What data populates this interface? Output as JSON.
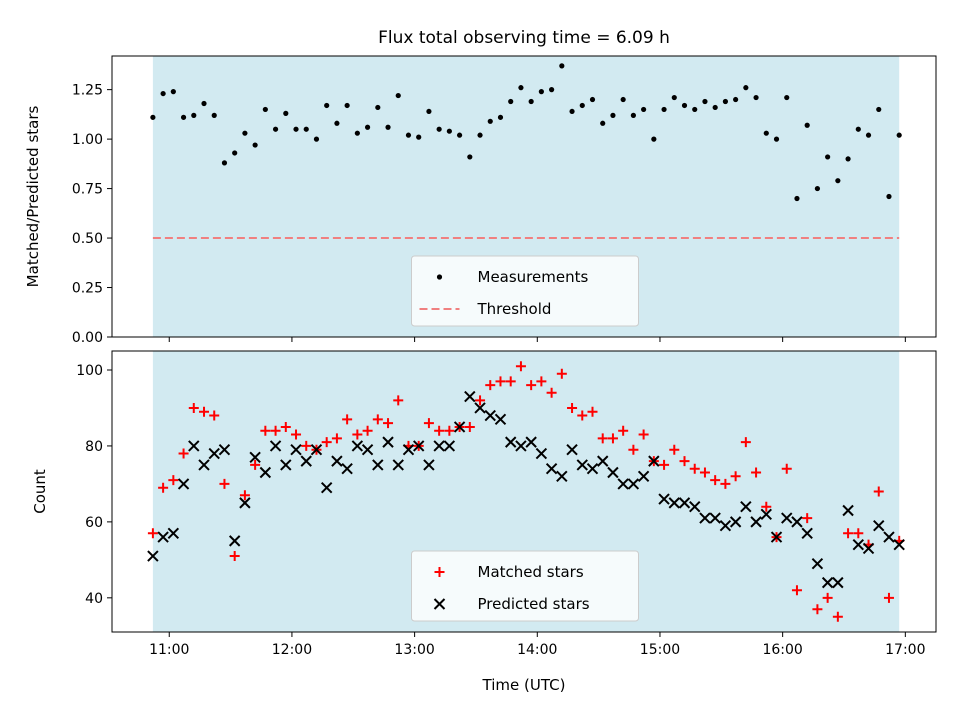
{
  "chart_data": [
    {
      "type": "scatter",
      "title": "Flux total observing time = 6.09 h",
      "xlabel": "",
      "ylabel": "Matched/Predicted stars",
      "xlim": [
        "10:32",
        "17:15"
      ],
      "ylim": [
        0,
        1.42
      ],
      "yticks": [
        "0.00",
        "0.25",
        "0.50",
        "0.75",
        "1.00",
        "1.25"
      ],
      "ytick_values": [
        0,
        0.25,
        0.5,
        0.75,
        1.0,
        1.25
      ],
      "shaded_span": [
        "10:52",
        "16:57"
      ],
      "threshold": 0.5,
      "legend": {
        "placement": "lower-center",
        "entries": [
          "Measurements",
          "Threshold"
        ]
      },
      "series": [
        {
          "name": "Measurements",
          "marker": "dot",
          "color": "#000000",
          "x": [
            "10:52",
            "10:57",
            "11:02",
            "11:07",
            "11:12",
            "11:17",
            "11:22",
            "11:27",
            "11:32",
            "11:37",
            "11:42",
            "11:47",
            "11:52",
            "11:57",
            "12:02",
            "12:07",
            "12:12",
            "12:17",
            "12:22",
            "12:27",
            "12:32",
            "12:37",
            "12:42",
            "12:47",
            "12:52",
            "12:57",
            "13:02",
            "13:07",
            "13:12",
            "13:17",
            "13:22",
            "13:27",
            "13:32",
            "13:37",
            "13:42",
            "13:47",
            "13:52",
            "13:57",
            "14:02",
            "14:07",
            "14:12",
            "14:17",
            "14:22",
            "14:27",
            "14:32",
            "14:37",
            "14:42",
            "14:47",
            "14:52",
            "14:57",
            "15:02",
            "15:07",
            "15:12",
            "15:17",
            "15:22",
            "15:27",
            "15:32",
            "15:37",
            "15:42",
            "15:47",
            "15:52",
            "15:57",
            "16:02",
            "16:07",
            "16:12",
            "16:17",
            "16:22",
            "16:27",
            "16:32",
            "16:37",
            "16:42",
            "16:47",
            "16:52",
            "16:57"
          ],
          "y": [
            1.11,
            1.23,
            1.24,
            1.11,
            1.12,
            1.18,
            1.12,
            0.88,
            0.93,
            1.03,
            0.97,
            1.15,
            1.05,
            1.13,
            1.05,
            1.05,
            1.0,
            1.17,
            1.08,
            1.17,
            1.03,
            1.06,
            1.16,
            1.06,
            1.22,
            1.02,
            1.01,
            1.14,
            1.05,
            1.04,
            1.02,
            0.91,
            1.02,
            1.09,
            1.11,
            1.19,
            1.26,
            1.19,
            1.24,
            1.25,
            1.37,
            1.14,
            1.17,
            1.2,
            1.08,
            1.12,
            1.2,
            1.12,
            1.15,
            1.0,
            1.15,
            1.21,
            1.17,
            1.15,
            1.19,
            1.16,
            1.19,
            1.2,
            1.26,
            1.21,
            1.03,
            1.0,
            1.21,
            0.7,
            1.07,
            0.75,
            0.91,
            0.79,
            0.9,
            1.05,
            1.02,
            1.15,
            0.71,
            1.02
          ]
        },
        {
          "name": "Threshold",
          "style": "dashed",
          "color": "#f08080",
          "x": [
            "10:52",
            "16:57"
          ],
          "y": [
            0.5,
            0.5
          ]
        }
      ]
    },
    {
      "type": "scatter",
      "title": "",
      "xlabel": "Time (UTC)",
      "ylabel": "Count",
      "xlim": [
        "10:32",
        "17:15"
      ],
      "ylim": [
        31,
        105
      ],
      "yticks": [
        "40",
        "60",
        "80",
        "100"
      ],
      "ytick_values": [
        40,
        60,
        80,
        100
      ],
      "xticks": [
        "11:00",
        "12:00",
        "13:00",
        "14:00",
        "15:00",
        "16:00",
        "17:00"
      ],
      "shaded_span": [
        "10:52",
        "16:57"
      ],
      "legend": {
        "placement": "lower-center",
        "entries": [
          "Matched stars",
          "Predicted stars"
        ]
      },
      "series": [
        {
          "name": "Matched stars",
          "marker": "plus",
          "color": "#ff0000",
          "x": [
            "10:52",
            "10:57",
            "11:02",
            "11:07",
            "11:12",
            "11:17",
            "11:22",
            "11:27",
            "11:32",
            "11:37",
            "11:42",
            "11:47",
            "11:52",
            "11:57",
            "12:02",
            "12:07",
            "12:12",
            "12:17",
            "12:22",
            "12:27",
            "12:32",
            "12:37",
            "12:42",
            "12:47",
            "12:52",
            "12:57",
            "13:02",
            "13:07",
            "13:12",
            "13:17",
            "13:22",
            "13:27",
            "13:32",
            "13:37",
            "13:42",
            "13:47",
            "13:52",
            "13:57",
            "14:02",
            "14:07",
            "14:12",
            "14:17",
            "14:22",
            "14:27",
            "14:32",
            "14:37",
            "14:42",
            "14:47",
            "14:52",
            "14:57",
            "15:02",
            "15:07",
            "15:12",
            "15:17",
            "15:22",
            "15:27",
            "15:32",
            "15:37",
            "15:42",
            "15:47",
            "15:52",
            "15:57",
            "16:02",
            "16:07",
            "16:12",
            "16:17",
            "16:22",
            "16:27",
            "16:32",
            "16:37",
            "16:42",
            "16:47",
            "16:52",
            "16:57"
          ],
          "y": [
            57,
            69,
            71,
            78,
            90,
            89,
            88,
            70,
            51,
            67,
            75,
            84,
            84,
            85,
            83,
            80,
            79,
            81,
            82,
            87,
            83,
            84,
            87,
            86,
            92,
            80,
            80,
            86,
            84,
            84,
            85,
            85,
            92,
            96,
            97,
            97,
            101,
            96,
            97,
            94,
            99,
            90,
            88,
            89,
            82,
            82,
            84,
            79,
            83,
            76,
            75,
            79,
            76,
            74,
            73,
            71,
            70,
            72,
            81,
            73,
            64,
            56,
            74,
            42,
            61,
            37,
            40,
            35,
            57,
            57,
            54,
            68,
            40,
            55
          ]
        },
        {
          "name": "Predicted stars",
          "marker": "x",
          "color": "#000000",
          "x": [
            "10:52",
            "10:57",
            "11:02",
            "11:07",
            "11:12",
            "11:17",
            "11:22",
            "11:27",
            "11:32",
            "11:37",
            "11:42",
            "11:47",
            "11:52",
            "11:57",
            "12:02",
            "12:07",
            "12:12",
            "12:17",
            "12:22",
            "12:27",
            "12:32",
            "12:37",
            "12:42",
            "12:47",
            "12:52",
            "12:57",
            "13:02",
            "13:07",
            "13:12",
            "13:17",
            "13:22",
            "13:27",
            "13:32",
            "13:37",
            "13:42",
            "13:47",
            "13:52",
            "13:57",
            "14:02",
            "14:07",
            "14:12",
            "14:17",
            "14:22",
            "14:27",
            "14:32",
            "14:37",
            "14:42",
            "14:47",
            "14:52",
            "14:57",
            "15:02",
            "15:07",
            "15:12",
            "15:17",
            "15:22",
            "15:27",
            "15:32",
            "15:37",
            "15:42",
            "15:47",
            "15:52",
            "15:57",
            "16:02",
            "16:07",
            "16:12",
            "16:17",
            "16:22",
            "16:27",
            "16:32",
            "16:37",
            "16:42",
            "16:47",
            "16:52",
            "16:57"
          ],
          "y": [
            51,
            56,
            57,
            70,
            80,
            75,
            78,
            79,
            55,
            65,
            77,
            73,
            80,
            75,
            79,
            76,
            79,
            69,
            76,
            74,
            80,
            79,
            75,
            81,
            75,
            79,
            80,
            75,
            80,
            80,
            85,
            93,
            90,
            88,
            87,
            81,
            80,
            81,
            78,
            74,
            72,
            79,
            75,
            74,
            76,
            73,
            70,
            70,
            72,
            76,
            66,
            65,
            65,
            64,
            61,
            61,
            59,
            60,
            64,
            60,
            62,
            56,
            61,
            60,
            57,
            49,
            44,
            44,
            63,
            54,
            53,
            59,
            56,
            54
          ]
        }
      ]
    }
  ]
}
